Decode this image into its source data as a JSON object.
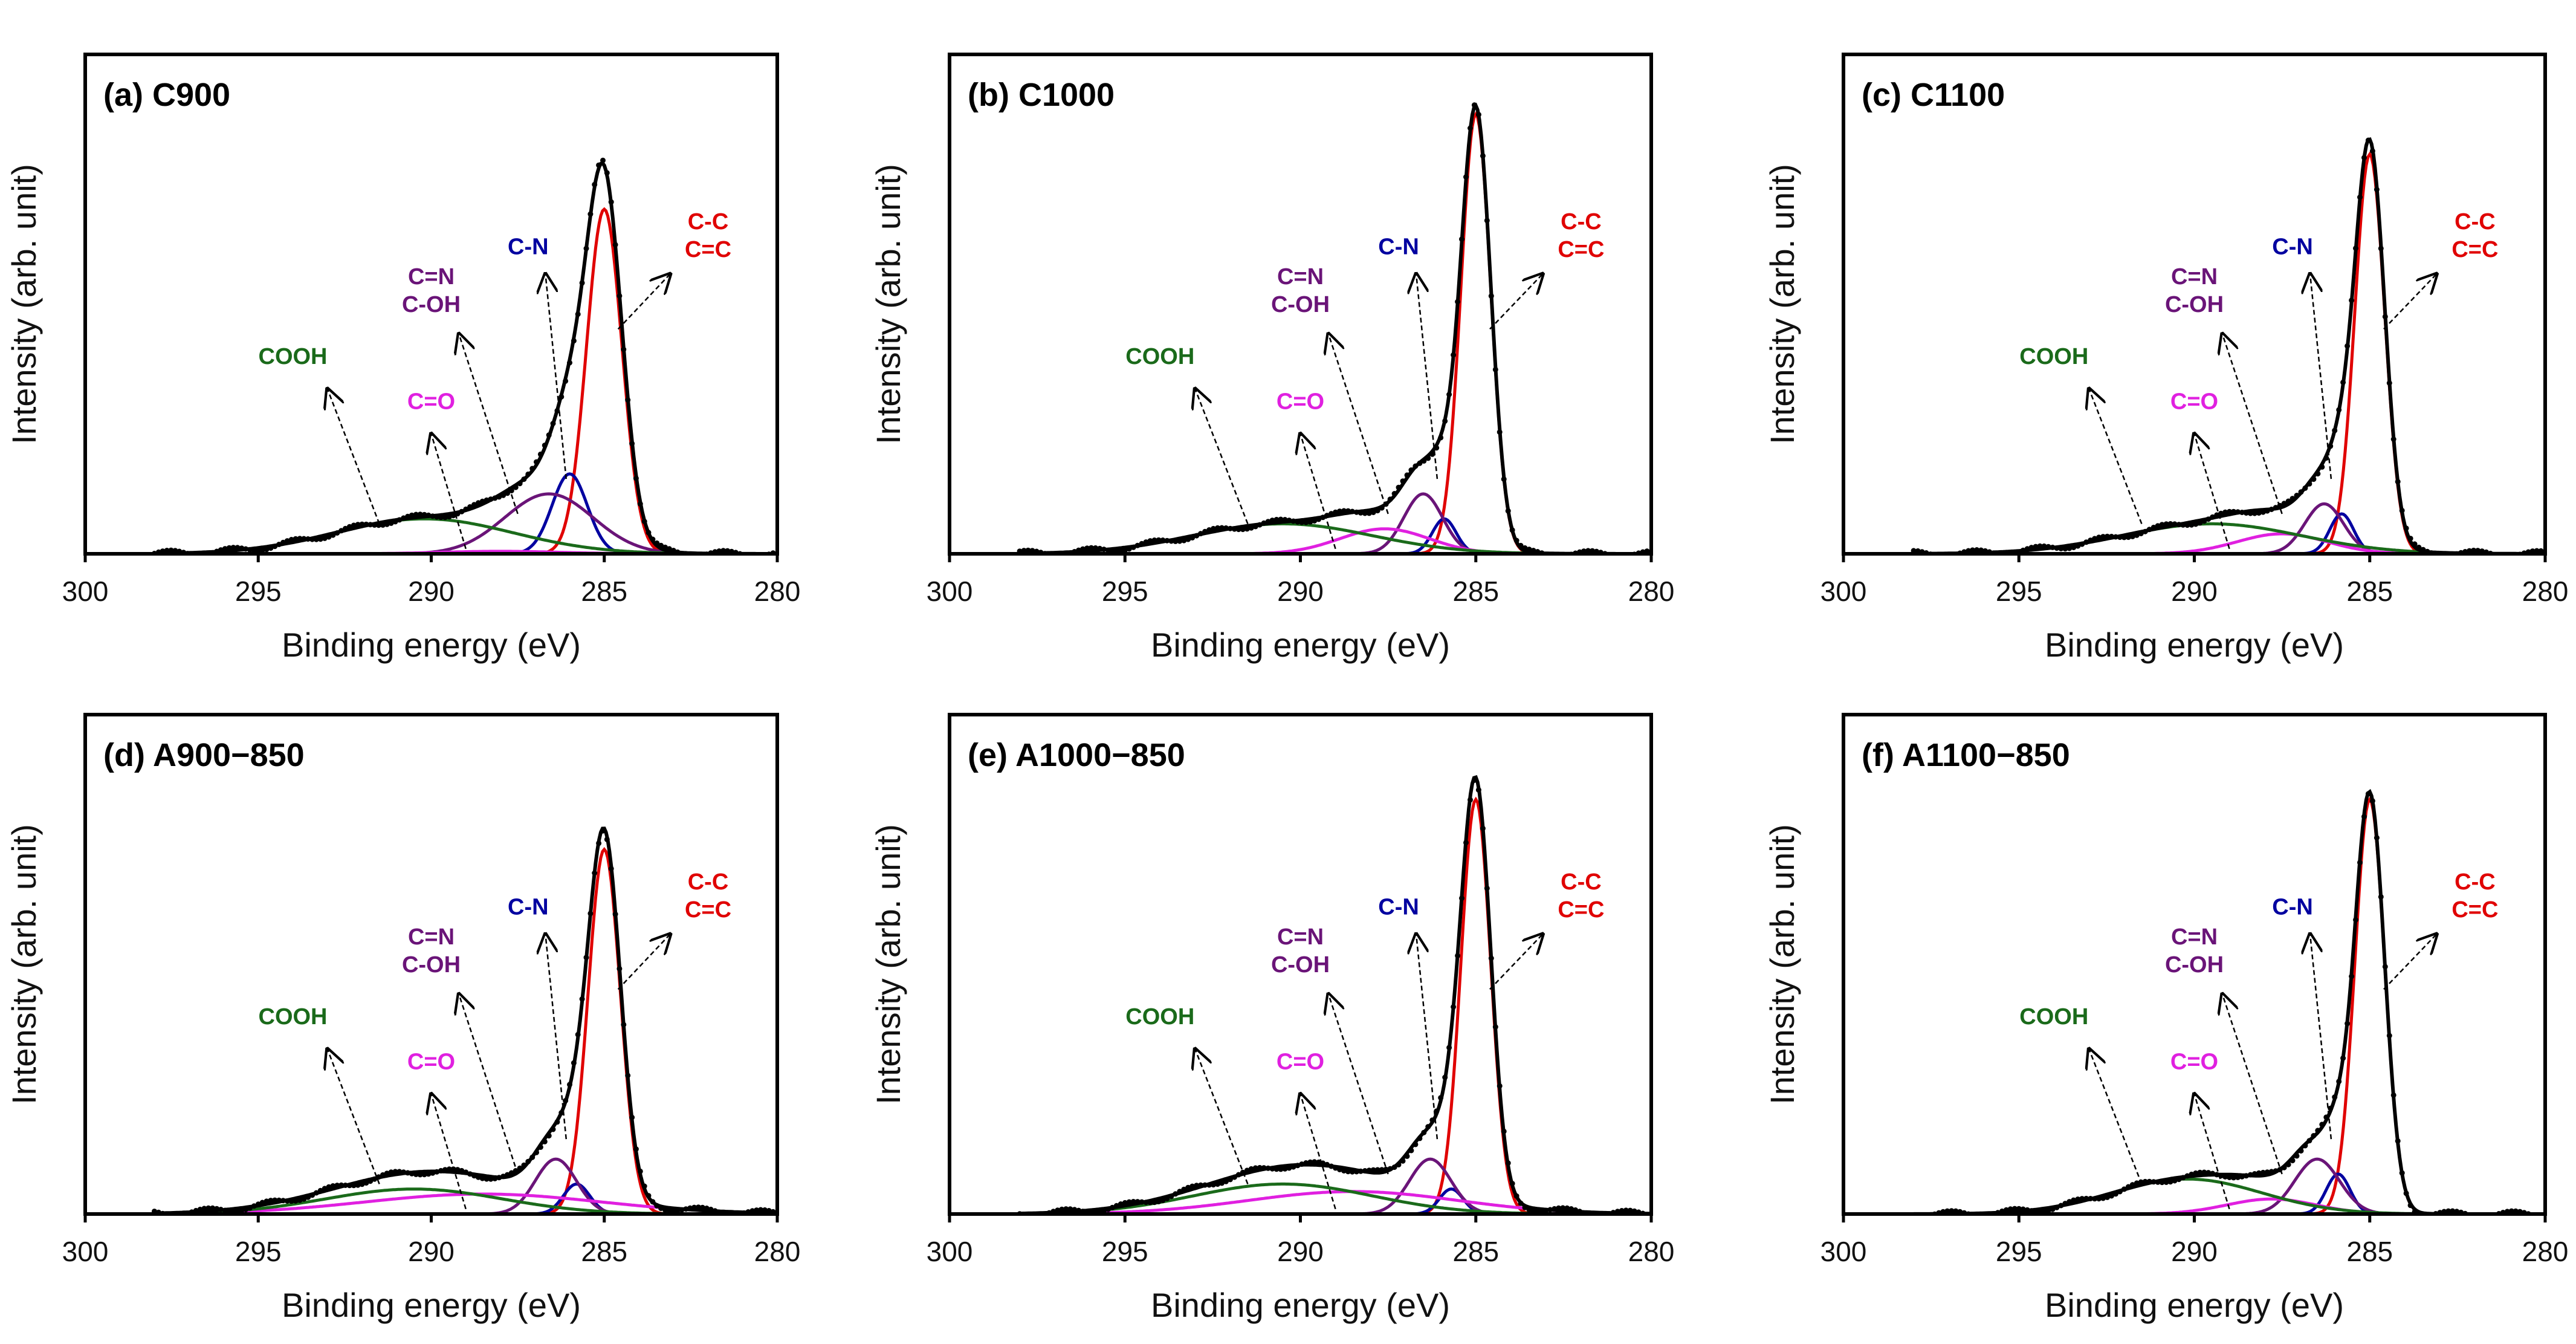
{
  "chart_data": [
    {
      "type": "line",
      "title": "(a) C900",
      "xlabel": "Binding energy (eV)",
      "ylabel": "Intensity (arb. unit)",
      "xlim": [
        300,
        280
      ],
      "ylim": [
        0,
        1
      ],
      "xticks": [
        "300",
        "295",
        "290",
        "285",
        "280"
      ],
      "components": [
        {
          "name": "C-C\nC=C",
          "center": 285.0,
          "fwhm": 1.2,
          "height": 0.69,
          "color": "#e00000"
        },
        {
          "name": "C-N",
          "center": 286.0,
          "fwhm": 1.2,
          "height": 0.16,
          "color": "#0000a0"
        },
        {
          "name": "C=N\nC-OH",
          "center": 286.6,
          "fwhm": 3.0,
          "height": 0.12,
          "color": "#6a1478"
        },
        {
          "name": "C=O",
          "center": 288.0,
          "fwhm": 4.0,
          "height": 0.005,
          "color": "#e020e0"
        },
        {
          "name": "COOH",
          "center": 290.2,
          "fwhm": 6.0,
          "height": 0.07,
          "color": "#1a6a1a"
        }
      ]
    },
    {
      "type": "line",
      "title": "(b) C1000",
      "xlabel": "Binding energy (eV)",
      "ylabel": "Intensity (arb. unit)",
      "xlim": [
        300,
        280
      ],
      "ylim": [
        0,
        1
      ],
      "xticks": [
        "300",
        "295",
        "290",
        "285",
        "280"
      ],
      "components": [
        {
          "name": "C-C\nC=C",
          "center": 285.0,
          "fwhm": 1.0,
          "height": 0.88,
          "color": "#e00000"
        },
        {
          "name": "C-N",
          "center": 285.9,
          "fwhm": 0.8,
          "height": 0.07,
          "color": "#0000a0"
        },
        {
          "name": "C=N\nC-OH",
          "center": 286.5,
          "fwhm": 1.3,
          "height": 0.12,
          "color": "#6a1478"
        },
        {
          "name": "C=O",
          "center": 287.6,
          "fwhm": 3.0,
          "height": 0.05,
          "color": "#e020e0"
        },
        {
          "name": "COOH",
          "center": 290.5,
          "fwhm": 6.0,
          "height": 0.06,
          "color": "#1a6a1a"
        }
      ]
    },
    {
      "type": "line",
      "title": "(c) C1100",
      "xlabel": "Binding energy (eV)",
      "ylabel": "Intensity (arb. unit)",
      "xlim": [
        300,
        280
      ],
      "ylim": [
        0,
        1
      ],
      "xticks": [
        "300",
        "295",
        "290",
        "285",
        "280"
      ],
      "components": [
        {
          "name": "C-C\nC=C",
          "center": 285.0,
          "fwhm": 1.0,
          "height": 0.8,
          "color": "#e00000"
        },
        {
          "name": "C-N",
          "center": 285.8,
          "fwhm": 0.8,
          "height": 0.08,
          "color": "#0000a0"
        },
        {
          "name": "C=N\nC-OH",
          "center": 286.3,
          "fwhm": 1.3,
          "height": 0.1,
          "color": "#6a1478"
        },
        {
          "name": "C=O",
          "center": 287.5,
          "fwhm": 3.0,
          "height": 0.04,
          "color": "#e020e0"
        },
        {
          "name": "COOH",
          "center": 289.5,
          "fwhm": 6.0,
          "height": 0.06,
          "color": "#1a6a1a"
        }
      ]
    },
    {
      "type": "line",
      "title": "(d) A900−850",
      "xlabel": "Binding energy (eV)",
      "ylabel": "Intensity (arb. unit)",
      "xlim": [
        300,
        280
      ],
      "ylim": [
        0,
        1
      ],
      "xticks": [
        "300",
        "295",
        "290",
        "285",
        "280"
      ],
      "components": [
        {
          "name": "C-C\nC=C",
          "center": 285.0,
          "fwhm": 1.1,
          "height": 0.73,
          "color": "#e00000"
        },
        {
          "name": "C-N",
          "center": 285.8,
          "fwhm": 0.9,
          "height": 0.06,
          "color": "#0000a0"
        },
        {
          "name": "C=N\nC-OH",
          "center": 286.4,
          "fwhm": 1.4,
          "height": 0.11,
          "color": "#6a1478"
        },
        {
          "name": "C=O",
          "center": 288.5,
          "fwhm": 8.0,
          "height": 0.04,
          "color": "#e020e0"
        },
        {
          "name": "COOH",
          "center": 290.5,
          "fwhm": 6.0,
          "height": 0.05,
          "color": "#1a6a1a"
        }
      ]
    },
    {
      "type": "line",
      "title": "(e) A1000−850",
      "xlabel": "Binding energy (eV)",
      "ylabel": "Intensity (arb. unit)",
      "xlim": [
        300,
        280
      ],
      "ylim": [
        0,
        1
      ],
      "xticks": [
        "300",
        "295",
        "290",
        "285",
        "280"
      ],
      "components": [
        {
          "name": "C-C\nC=C",
          "center": 285.0,
          "fwhm": 1.0,
          "height": 0.83,
          "color": "#e00000"
        },
        {
          "name": "C-N",
          "center": 285.7,
          "fwhm": 0.8,
          "height": 0.05,
          "color": "#0000a0"
        },
        {
          "name": "C=N\nC-OH",
          "center": 286.3,
          "fwhm": 1.4,
          "height": 0.11,
          "color": "#6a1478"
        },
        {
          "name": "C=O",
          "center": 288.5,
          "fwhm": 7.0,
          "height": 0.045,
          "color": "#e020e0"
        },
        {
          "name": "COOH",
          "center": 290.5,
          "fwhm": 6.0,
          "height": 0.06,
          "color": "#1a6a1a"
        }
      ]
    },
    {
      "type": "line",
      "title": "(f) A1100−850",
      "xlabel": "Binding energy (eV)",
      "ylabel": "Intensity (arb. unit)",
      "xlim": [
        300,
        280
      ],
      "ylim": [
        0,
        1
      ],
      "xticks": [
        "300",
        "295",
        "290",
        "285",
        "280"
      ],
      "components": [
        {
          "name": "C-C\nC=C",
          "center": 285.0,
          "fwhm": 1.0,
          "height": 0.83,
          "color": "#e00000"
        },
        {
          "name": "C-N",
          "center": 285.9,
          "fwhm": 0.8,
          "height": 0.08,
          "color": "#0000a0"
        },
        {
          "name": "C=N\nC-OH",
          "center": 286.5,
          "fwhm": 1.5,
          "height": 0.11,
          "color": "#6a1478"
        },
        {
          "name": "C=O",
          "center": 287.8,
          "fwhm": 3.0,
          "height": 0.03,
          "color": "#e020e0"
        },
        {
          "name": "COOH",
          "center": 290.2,
          "fwhm": 5.0,
          "height": 0.07,
          "color": "#1a6a1a"
        }
      ]
    }
  ]
}
